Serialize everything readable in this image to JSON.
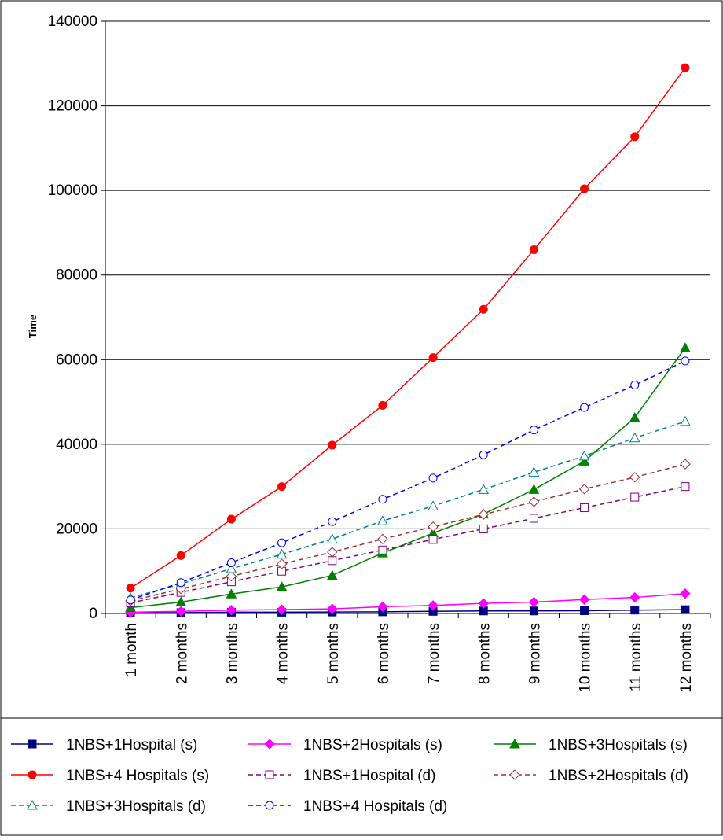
{
  "chart_data": {
    "type": "line",
    "title": "",
    "xlabel": "",
    "ylabel": "Time",
    "ylim": [
      0,
      140000
    ],
    "yticks": [
      0,
      20000,
      40000,
      60000,
      80000,
      100000,
      120000,
      140000
    ],
    "grid": true,
    "legend_position": "bottom",
    "categories": [
      "1 month",
      "2 months",
      "3 months",
      "4 months",
      "5 months",
      "6 months",
      "7 months",
      "8 months",
      "9 months",
      "10 months",
      "11 months",
      "12 months"
    ],
    "series": [
      {
        "name": "1NBS+1Hospital  (s)",
        "color": "#000080",
        "marker": "square-filled",
        "dash": "solid",
        "values": [
          100,
          200,
          300,
          300,
          350,
          400,
          500,
          600,
          600,
          650,
          800,
          900
        ]
      },
      {
        "name": "1NBS+2Hospitals (s)",
        "color": "#ff00ff",
        "marker": "diamond-filled",
        "dash": "solid",
        "values": [
          300,
          500,
          800,
          900,
          1100,
          1600,
          1900,
          2400,
          2700,
          3300,
          3800,
          4700
        ]
      },
      {
        "name": "1NBS+3Hospitals (s)",
        "color": "#008000",
        "marker": "triangle-filled",
        "dash": "solid",
        "values": [
          1400,
          2700,
          4600,
          6300,
          9000,
          14300,
          19000,
          23500,
          29300,
          36000,
          46300,
          62800
        ]
      },
      {
        "name": "1NBS+4 Hospitals (s)",
        "color": "#ff0000",
        "marker": "circle-filled",
        "dash": "solid",
        "values": [
          6000,
          13700,
          22300,
          30000,
          39800,
          49200,
          60500,
          71900,
          86000,
          100400,
          112700,
          129000
        ]
      },
      {
        "name": "1NBS+1Hospital  (d)",
        "color": "#800080",
        "marker": "square-open",
        "dash": "dashed",
        "values": [
          2500,
          5000,
          7500,
          10000,
          12500,
          15000,
          17500,
          20000,
          22500,
          25000,
          27500,
          30000
        ]
      },
      {
        "name": "1NBS+2Hospitals (d)",
        "color": "#993333",
        "marker": "diamond-open",
        "dash": "dashed",
        "values": [
          3000,
          5800,
          8800,
          11700,
          14500,
          17600,
          20500,
          23400,
          26400,
          29400,
          32200,
          35300
        ]
      },
      {
        "name": "1NBS+3Hospitals (d)",
        "color": "#008080",
        "marker": "triangle-open",
        "dash": "dashed",
        "values": [
          3700,
          7000,
          10600,
          14000,
          17600,
          21900,
          25400,
          29300,
          33400,
          37200,
          41500,
          45400
        ]
      },
      {
        "name": "1NBS+4 Hospitals (d)",
        "color": "#0000ff",
        "marker": "circle-open",
        "dash": "dashed",
        "values": [
          3200,
          7300,
          12000,
          16700,
          21700,
          27000,
          32000,
          37500,
          43400,
          48700,
          54000,
          59700
        ]
      }
    ]
  }
}
